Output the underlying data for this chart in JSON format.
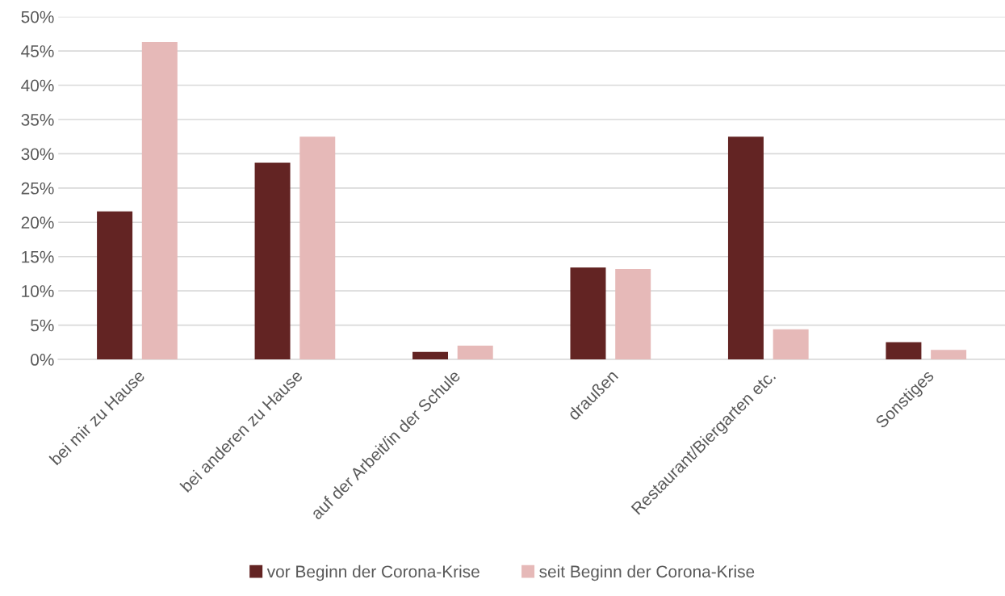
{
  "chart_data": {
    "type": "bar",
    "categories": [
      "bei mir zu Hause",
      "bei anderen zu Hause",
      "auf der Arbeit/in der Schule",
      "draußen",
      "Restaurant/Biergarten etc.",
      "Sonstiges"
    ],
    "series": [
      {
        "name": "vor Beginn der Corona-Krise",
        "color": "#632423",
        "values": [
          21.6,
          28.7,
          1.1,
          13.4,
          32.5,
          2.5
        ]
      },
      {
        "name": "seit Beginn der Corona-Krise",
        "color": "#e6b9b8",
        "values": [
          46.3,
          32.5,
          2.0,
          13.2,
          4.4,
          1.4
        ]
      }
    ],
    "ylim": [
      0,
      50
    ],
    "yticks": [
      {
        "value": 0,
        "label": "0%"
      },
      {
        "value": 5,
        "label": "5%"
      },
      {
        "value": 10,
        "label": "10%"
      },
      {
        "value": 15,
        "label": "15%"
      },
      {
        "value": 20,
        "label": "20%"
      },
      {
        "value": 25,
        "label": "25%"
      },
      {
        "value": 30,
        "label": "30%"
      },
      {
        "value": 35,
        "label": "35%"
      },
      {
        "value": 40,
        "label": "40%"
      },
      {
        "value": 45,
        "label": "45%"
      },
      {
        "value": 50,
        "label": "50%"
      }
    ],
    "grid": "y",
    "legend": "bottom"
  }
}
